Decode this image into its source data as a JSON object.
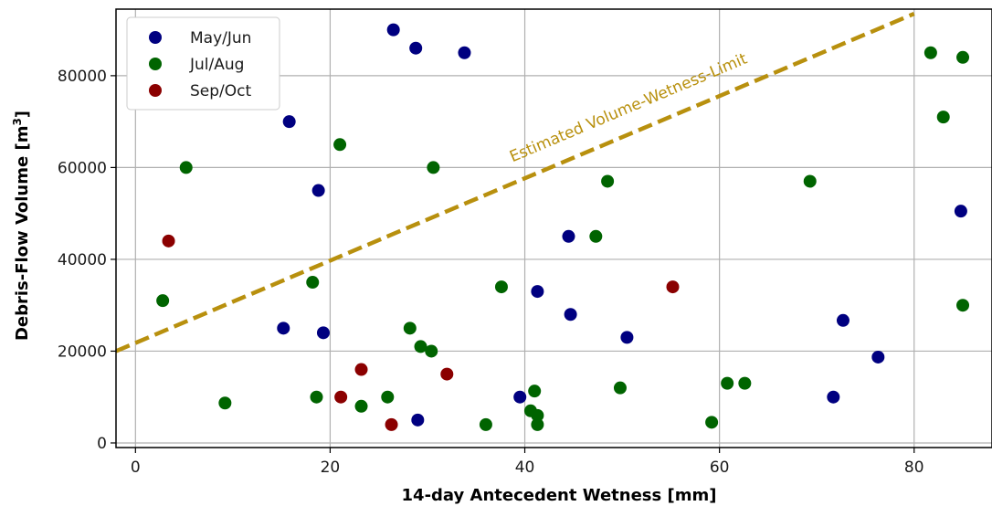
{
  "chart_data": {
    "type": "scatter",
    "title": "",
    "xlabel": "14-day Antecedent Wetness [mm]",
    "ylabel_main": "Debris-Flow Volume [m",
    "ylabel_sup": "3",
    "ylabel_end": "]",
    "xlim": [
      -2,
      88
    ],
    "ylim": [
      -1000,
      94500
    ],
    "xticks": [
      0,
      20,
      40,
      60,
      80
    ],
    "yticks": [
      0,
      20000,
      40000,
      60000,
      80000
    ],
    "grid": true,
    "legend_position": "top-left",
    "series": [
      {
        "name": "May/Jun",
        "color": "#000080",
        "points": [
          [
            26.5,
            90000
          ],
          [
            28.8,
            86000
          ],
          [
            33.8,
            85000
          ],
          [
            15.8,
            70000
          ],
          [
            18.8,
            55000
          ],
          [
            84.8,
            50500
          ],
          [
            44.5,
            45000
          ],
          [
            41.3,
            33000
          ],
          [
            44.7,
            28000
          ],
          [
            15.2,
            25000
          ],
          [
            19.3,
            24000
          ],
          [
            50.5,
            23000
          ],
          [
            72.7,
            26700
          ],
          [
            76.3,
            18700
          ],
          [
            39.5,
            10000
          ],
          [
            71.7,
            10000
          ],
          [
            29.0,
            5000
          ]
        ]
      },
      {
        "name": "Jul/Aug",
        "color": "#006400",
        "points": [
          [
            81.7,
            85000
          ],
          [
            85.0,
            84000
          ],
          [
            83.0,
            71000
          ],
          [
            21.0,
            65000
          ],
          [
            5.2,
            60000
          ],
          [
            30.6,
            60000
          ],
          [
            48.5,
            57000
          ],
          [
            69.3,
            57000
          ],
          [
            47.3,
            45000
          ],
          [
            18.2,
            35000
          ],
          [
            37.6,
            34000
          ],
          [
            2.8,
            31000
          ],
          [
            85.0,
            30000
          ],
          [
            28.2,
            25000
          ],
          [
            29.3,
            21000
          ],
          [
            30.4,
            20000
          ],
          [
            9.2,
            8700
          ],
          [
            18.6,
            10000
          ],
          [
            23.2,
            8000
          ],
          [
            25.9,
            10000
          ],
          [
            41.0,
            11300
          ],
          [
            40.6,
            7000
          ],
          [
            41.3,
            6000
          ],
          [
            41.3,
            4000
          ],
          [
            36.0,
            4000
          ],
          [
            49.8,
            12000
          ],
          [
            59.2,
            4500
          ],
          [
            60.8,
            13000
          ],
          [
            62.6,
            13000
          ]
        ]
      },
      {
        "name": "Sep/Oct",
        "color": "#8b0000",
        "points": [
          [
            3.4,
            44000
          ],
          [
            23.2,
            16000
          ],
          [
            21.1,
            10000
          ],
          [
            26.3,
            4000
          ],
          [
            32.0,
            15000
          ],
          [
            55.2,
            34000
          ]
        ]
      }
    ],
    "limit_line": {
      "label": "Estimated Volume-Wetness-Limit",
      "color": "#b8900e",
      "x": [
        -2,
        80
      ],
      "y": [
        20000,
        93500
      ]
    }
  }
}
